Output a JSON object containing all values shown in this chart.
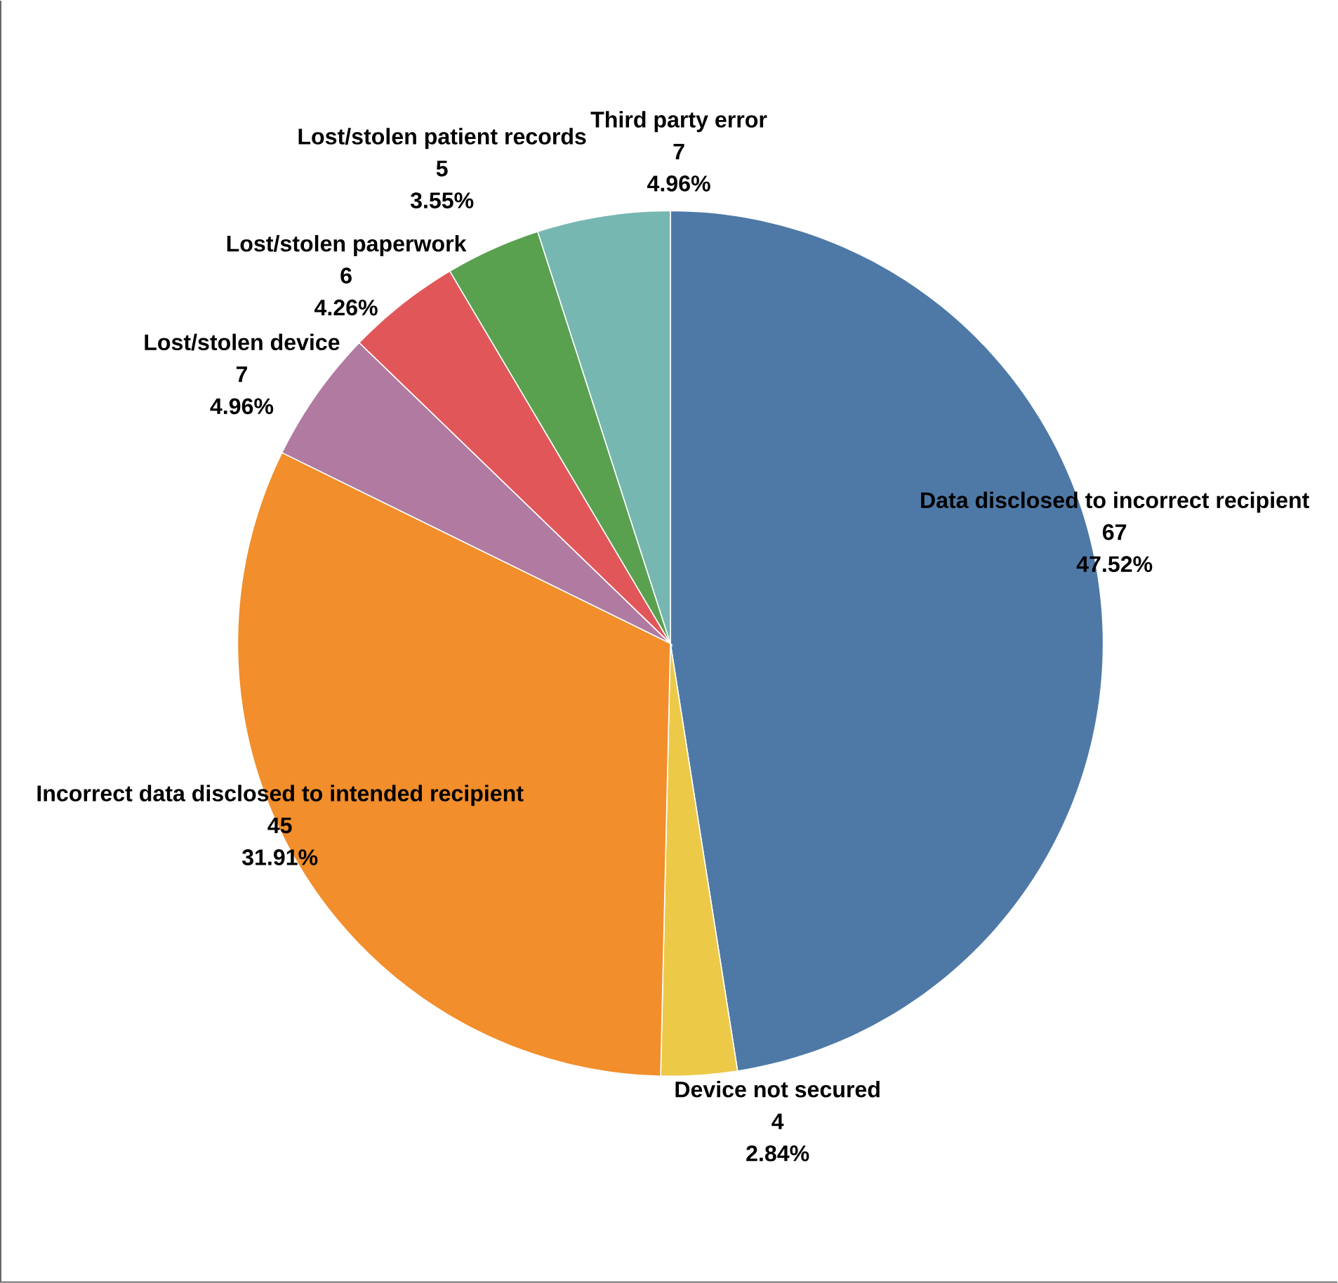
{
  "chart_data": {
    "type": "pie",
    "categories": [
      "Data disclosed to incorrect recipient",
      "Device not secured",
      "Incorrect data disclosed to intended recipient",
      "Lost/stolen device",
      "Lost/stolen paperwork",
      "Lost/stolen patient records",
      "Third party error"
    ],
    "values": [
      47.52,
      2.84,
      31.91,
      4.96,
      4.26,
      3.55,
      4.96
    ],
    "colors": [
      "#4e79a7",
      "#edc948",
      "#f28e2b",
      "#b07aa1",
      "#e15759",
      "#59a14f",
      "#76b7b2"
    ],
    "value_labels": [
      "47.52%",
      "2.84%",
      "31.91%",
      "4.96%",
      "4.26%",
      "3.55%",
      "4.96%"
    ],
    "annotations": [
      {
        "text": "67",
        "x": "Data disclosed to incorrect recipient"
      },
      {
        "text": "4",
        "x": "Device not secured"
      },
      {
        "text": "45",
        "x": "Incorrect data disclosed to intended recipient"
      },
      {
        "text": "7",
        "x": "Lost/stolen device"
      },
      {
        "text": "6",
        "x": "Lost/stolen paperwork"
      },
      {
        "text": "5",
        "x": "Lost/stolen patient records"
      },
      {
        "text": "7",
        "x": "Third party error"
      }
    ]
  }
}
